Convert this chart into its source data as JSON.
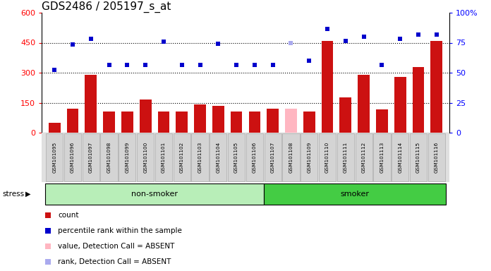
{
  "title": "GDS2486 / 205197_s_at",
  "samples": [
    "GSM101095",
    "GSM101096",
    "GSM101097",
    "GSM101098",
    "GSM101099",
    "GSM101100",
    "GSM101101",
    "GSM101102",
    "GSM101103",
    "GSM101104",
    "GSM101105",
    "GSM101106",
    "GSM101107",
    "GSM101108",
    "GSM101109",
    "GSM101110",
    "GSM101111",
    "GSM101112",
    "GSM101113",
    "GSM101114",
    "GSM101115",
    "GSM101116"
  ],
  "count_values": [
    50,
    120,
    290,
    105,
    105,
    165,
    105,
    105,
    140,
    135,
    105,
    105,
    120,
    120,
    105,
    460,
    175,
    290,
    115,
    280,
    330,
    460
  ],
  "count_absent": [
    false,
    false,
    false,
    false,
    false,
    false,
    false,
    false,
    false,
    false,
    false,
    false,
    false,
    true,
    false,
    false,
    false,
    false,
    false,
    false,
    false,
    false
  ],
  "rank_values": [
    315,
    440,
    470,
    340,
    340,
    340,
    455,
    340,
    340,
    445,
    340,
    340,
    340,
    450,
    360,
    520,
    460,
    480,
    340,
    470,
    490,
    490
  ],
  "rank_absent": [
    false,
    false,
    false,
    false,
    false,
    false,
    false,
    false,
    false,
    false,
    false,
    false,
    false,
    true,
    false,
    false,
    false,
    false,
    false,
    false,
    false,
    false
  ],
  "groups": [
    {
      "label": "non-smoker",
      "start": 0,
      "end": 12,
      "color": "#B8EEB8"
    },
    {
      "label": "smoker",
      "start": 12,
      "end": 22,
      "color": "#44CC44"
    }
  ],
  "group_label": "stress",
  "ylim_left": [
    0,
    600
  ],
  "ylim_right": [
    0,
    100
  ],
  "yticks_left": [
    0,
    150,
    300,
    450,
    600
  ],
  "yticks_right": [
    0,
    25,
    50,
    75,
    100
  ],
  "hgrid_lines": [
    150,
    300,
    450
  ],
  "bar_color": "#CC1111",
  "bar_absent_color": "#FFB6C1",
  "rank_color": "#0000CC",
  "rank_absent_color": "#AAAAEE",
  "title_fontsize": 11,
  "legend_items": [
    {
      "color": "#CC1111",
      "marker": "s",
      "label": "count"
    },
    {
      "color": "#0000CC",
      "marker": "s",
      "label": "percentile rank within the sample"
    },
    {
      "color": "#FFB6C1",
      "marker": "s",
      "label": "value, Detection Call = ABSENT"
    },
    {
      "color": "#AAAAEE",
      "marker": "s",
      "label": "rank, Detection Call = ABSENT"
    }
  ]
}
